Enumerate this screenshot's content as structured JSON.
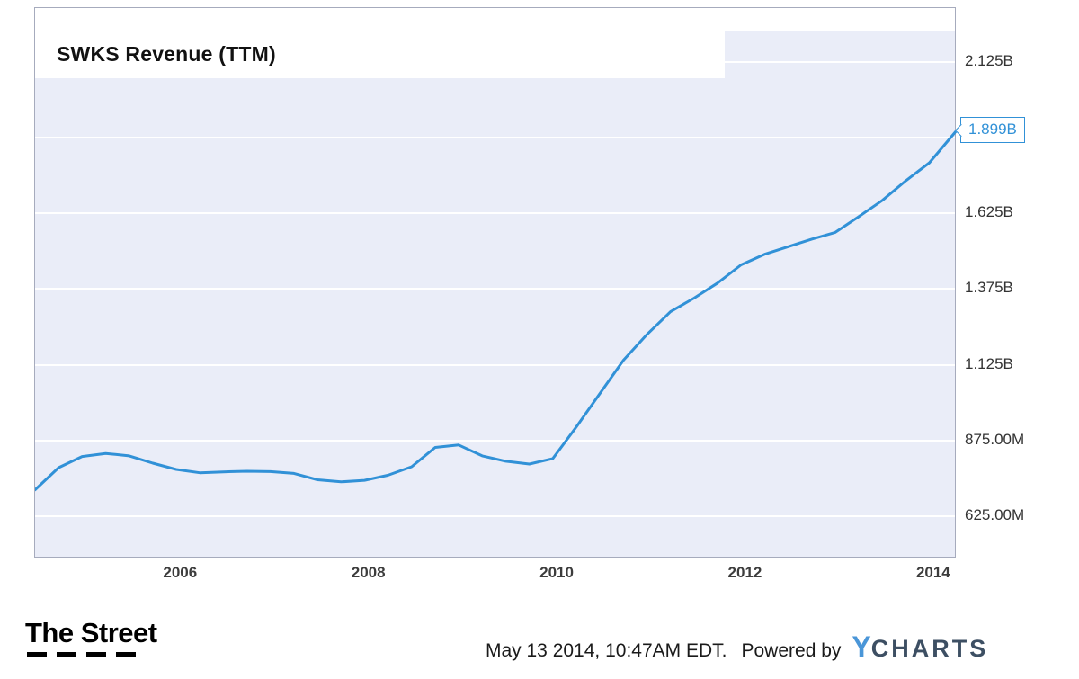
{
  "chart_data": {
    "type": "line",
    "title": "SWKS Revenue (TTM)",
    "series_name": "SWKS Revenue (TTM)",
    "xlabel": "",
    "ylabel": "",
    "legend": "none",
    "grid": "horizontal-only",
    "values_unit": "USD (stored in millions)",
    "xlim": [
      2004.45,
      2014.24
    ],
    "ylim_millions": [
      485,
      2303
    ],
    "x": [
      2004.45,
      2004.7,
      2004.95,
      2005.2,
      2005.45,
      2005.7,
      2005.95,
      2006.2,
      2006.45,
      2006.7,
      2006.95,
      2007.2,
      2007.45,
      2007.7,
      2007.95,
      2008.2,
      2008.45,
      2008.7,
      2008.95,
      2009.2,
      2009.45,
      2009.7,
      2009.95,
      2010.2,
      2010.45,
      2010.7,
      2010.95,
      2011.2,
      2011.45,
      2011.7,
      2011.95,
      2012.2,
      2012.45,
      2012.7,
      2012.95,
      2013.2,
      2013.45,
      2013.7,
      2013.95,
      2014.24
    ],
    "values": [
      712,
      785,
      822,
      832,
      824,
      800,
      779,
      768,
      771,
      773,
      772,
      766,
      745,
      738,
      743,
      760,
      788,
      852,
      860,
      824,
      806,
      797,
      815,
      920,
      1030,
      1140,
      1225,
      1300,
      1345,
      1395,
      1455,
      1490,
      1515,
      1540,
      1562,
      1614,
      1668,
      1733,
      1792,
      1899
    ],
    "x_ticks": [
      {
        "value": 2006,
        "label": "2006"
      },
      {
        "value": 2008,
        "label": "2008"
      },
      {
        "value": 2010,
        "label": "2010"
      },
      {
        "value": 2012,
        "label": "2012"
      },
      {
        "value": 2014,
        "label": "2014"
      }
    ],
    "y_ticks": [
      {
        "value_millions": 625,
        "label": "625.00M"
      },
      {
        "value_millions": 875,
        "label": "875.00M"
      },
      {
        "value_millions": 1125,
        "label": "1.125B"
      },
      {
        "value_millions": 1375,
        "label": "1.375B"
      },
      {
        "value_millions": 1625,
        "label": "1.625B"
      },
      {
        "value_millions": 1875,
        "label": ""
      },
      {
        "value_millions": 2125,
        "label": "2.125B"
      }
    ],
    "callout": {
      "value_millions": 1899,
      "label": "1.899B"
    }
  },
  "colors": {
    "line": "#3191d7",
    "plot_bg": "#eaedf8",
    "gridline": "#ffffff",
    "plot_border": "#a6abbd",
    "callout_border": "#3191d7",
    "callout_text": "#3191d7",
    "axis_text": "#333333",
    "title_text": "#111111",
    "ycharts_y": "#4a96d8",
    "ycharts_charts": "#3d4f63"
  },
  "footer": {
    "thestreet_logo": "The Street",
    "timestamp": "May 13 2014, 10:47AM EDT.",
    "powered_by": "Powered by",
    "ycharts_y": "Y",
    "ycharts_charts": "CHARTS"
  }
}
